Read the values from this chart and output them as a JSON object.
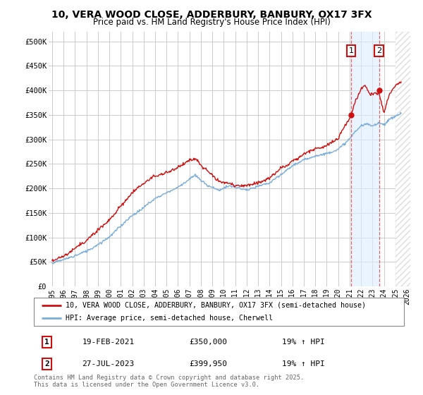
{
  "title": "10, VERA WOOD CLOSE, ADDERBURY, BANBURY, OX17 3FX",
  "subtitle": "Price paid vs. HM Land Registry's House Price Index (HPI)",
  "ylabel_ticks": [
    "£0",
    "£50K",
    "£100K",
    "£150K",
    "£200K",
    "£250K",
    "£300K",
    "£350K",
    "£400K",
    "£450K",
    "£500K"
  ],
  "ytick_values": [
    0,
    50000,
    100000,
    150000,
    200000,
    250000,
    300000,
    350000,
    400000,
    450000,
    500000
  ],
  "ylim": [
    0,
    520000
  ],
  "xlim_start": 1994.7,
  "xlim_end": 2026.3,
  "xtick_years": [
    1995,
    1996,
    1997,
    1998,
    1999,
    2000,
    2001,
    2002,
    2003,
    2004,
    2005,
    2006,
    2007,
    2008,
    2009,
    2010,
    2011,
    2012,
    2013,
    2014,
    2015,
    2016,
    2017,
    2018,
    2019,
    2020,
    2021,
    2022,
    2023,
    2024,
    2025,
    2026
  ],
  "line1_color": "#cc1111",
  "line2_color": "#7aaddb",
  "background_color": "#ffffff",
  "grid_color": "#cccccc",
  "annotation_box_color": "#cc1111",
  "legend_label1": "10, VERA WOOD CLOSE, ADDERBURY, BANBURY, OX17 3FX (semi-detached house)",
  "legend_label2": "HPI: Average price, semi-detached house, Cherwell",
  "annotation1_num": "1",
  "annotation1_date": "19-FEB-2021",
  "annotation1_price": "£350,000",
  "annotation1_hpi": "19% ↑ HPI",
  "annotation2_num": "2",
  "annotation2_date": "27-JUL-2023",
  "annotation2_price": "£399,950",
  "annotation2_hpi": "19% ↑ HPI",
  "footer": "Contains HM Land Registry data © Crown copyright and database right 2025.\nThis data is licensed under the Open Government Licence v3.0.",
  "marker1_x": 2021.12,
  "marker1_y": 350000,
  "marker2_x": 2023.56,
  "marker2_y": 399950,
  "dashed_line1_x": 2021.12,
  "dashed_line2_x": 2023.56,
  "shade_start": 2021.12,
  "shade_end": 2023.56,
  "hatch_start": 2025.0
}
